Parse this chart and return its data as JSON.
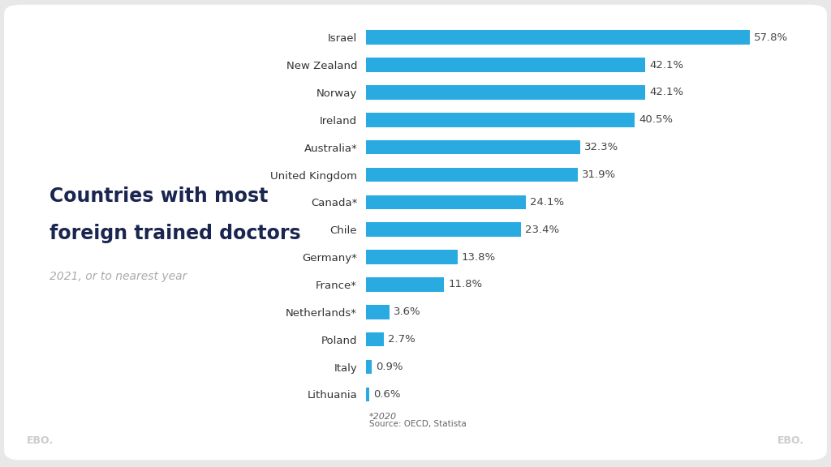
{
  "countries": [
    "Israel",
    "New Zealand",
    "Norway",
    "Ireland",
    "Australia*",
    "United Kingdom",
    "Canada*",
    "Chile",
    "Germany*",
    "France*",
    "Netherlands*",
    "Poland",
    "Italy",
    "Lithuania"
  ],
  "values": [
    57.8,
    42.1,
    42.1,
    40.5,
    32.3,
    31.9,
    24.1,
    23.4,
    13.8,
    11.8,
    3.6,
    2.7,
    0.9,
    0.6
  ],
  "bar_color": "#29ABE2",
  "title_line1": "Countries with most",
  "title_line2": "foreign trained doctors",
  "subtitle": "2021, or to nearest year",
  "annotation": "*2020",
  "source": "Source: OECD, Statista",
  "title_color": "#1a2550",
  "subtitle_color": "#aaaaaa",
  "annotation_color": "#666666",
  "source_color": "#666666",
  "outer_bg": "#e8e8e8",
  "card_bg": "#ffffff",
  "value_label_color": "#444444",
  "country_label_color": "#333333",
  "ebo_color": "#cccccc",
  "xlim": [
    0,
    65
  ],
  "title_fontsize": 17,
  "subtitle_fontsize": 10,
  "label_fontsize": 9.5,
  "value_fontsize": 9.5,
  "bar_height": 0.52
}
